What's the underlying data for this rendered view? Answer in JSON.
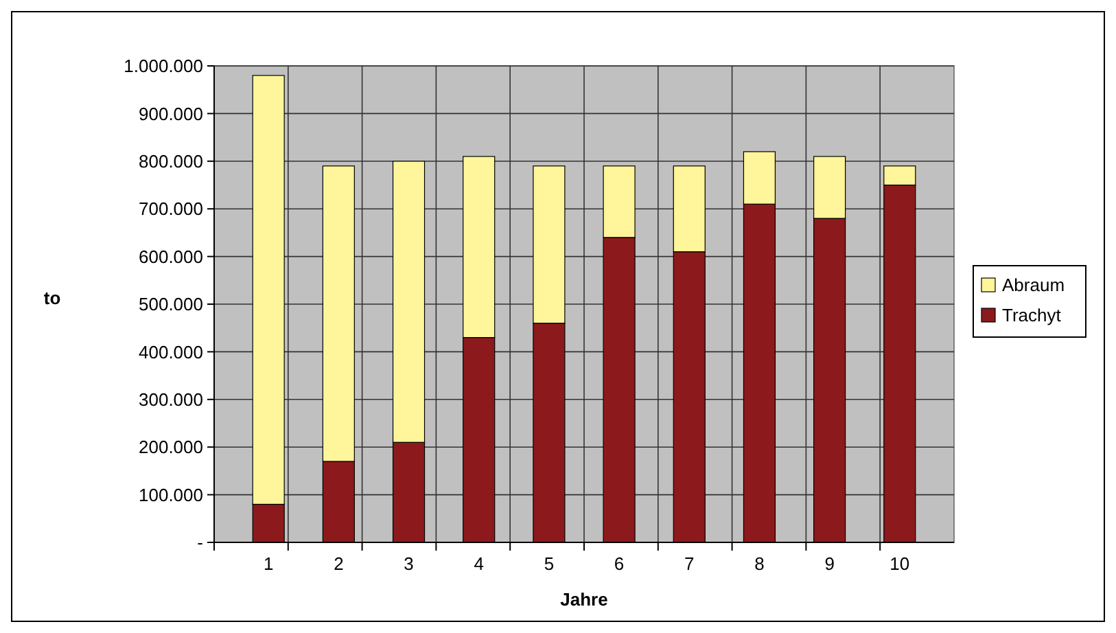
{
  "chart_data": {
    "type": "bar",
    "stacked": true,
    "xlabel": "Jahre",
    "ylabel": "to",
    "categories": [
      "1",
      "2",
      "3",
      "4",
      "5",
      "6",
      "7",
      "8",
      "9",
      "10"
    ],
    "series": [
      {
        "name": "Trachyt",
        "color": "#8c1a1c",
        "values": [
          80000,
          170000,
          210000,
          430000,
          460000,
          640000,
          610000,
          710000,
          680000,
          750000
        ]
      },
      {
        "name": "Abraum",
        "color": "#fff59a",
        "values": [
          900000,
          620000,
          590000,
          380000,
          330000,
          150000,
          180000,
          110000,
          130000,
          40000
        ]
      }
    ],
    "ylim": [
      0,
      1000000
    ],
    "yticks": [
      {
        "value": 0,
        "label": "-"
      },
      {
        "value": 100000,
        "label": "100.000"
      },
      {
        "value": 200000,
        "label": "200.000"
      },
      {
        "value": 300000,
        "label": "300.000"
      },
      {
        "value": 400000,
        "label": "400.000"
      },
      {
        "value": 500000,
        "label": "500.000"
      },
      {
        "value": 600000,
        "label": "600.000"
      },
      {
        "value": 700000,
        "label": "700.000"
      },
      {
        "value": 800000,
        "label": "800.000"
      },
      {
        "value": 900000,
        "label": "900.000"
      },
      {
        "value": 1000000,
        "label": "1.000.000"
      }
    ],
    "grid": true,
    "legend": "right"
  }
}
